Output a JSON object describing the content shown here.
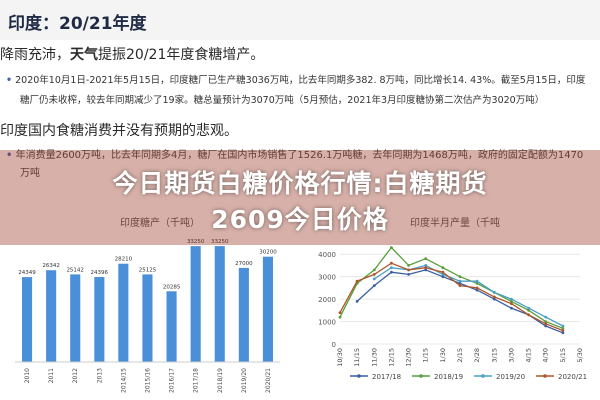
{
  "header": {
    "title": "印度：20/21年度"
  },
  "text": {
    "line1_prefix": "降雨充沛，",
    "line1_bold": "天气",
    "line1_suffix": "提振20/21年度食糖增产。",
    "detail1": "2020年10月1日-2021年5月15日，印度糖厂已生产糖3036万吨，比去年同期多382. 8万吨，同比增长14. 43%。截至5月15日，印度",
    "detail2": "糖厂仍未收榨，较去年同期减少了19家。糖总量预计为3070万吨（5月预估，2021年3月印度糖协第二次估产为3020万吨）",
    "line2": "印度国内食糖消费并没有预期的悲观。",
    "faded1": "年消费量2600万吨，比去年同期多4月，糖厂在国内市场销售了1526.1万吨糖，去年同期为1468万吨，政府的固定配额为1470",
    "faded2": "万吨"
  },
  "overlay": {
    "line1": "今日期货白糖价格行情:白糖期货",
    "line2": "2609今日价格"
  },
  "chart_data": [
    {
      "type": "bar",
      "title": "印度糖产（千吨）",
      "categories": [
        "2010",
        "2011",
        "2012",
        "2013",
        "2014/15",
        "2015/16",
        "2016/17",
        "2017/18",
        "2018/19",
        "2019/20",
        "2020/21"
      ],
      "values": [
        24349,
        26342,
        25142,
        24396,
        28210,
        25125,
        20285,
        33250,
        33250,
        27000,
        30200
      ],
      "color": "#4a90d9"
    },
    {
      "type": "line",
      "title": "印度半月产量（千吨",
      "x": [
        "10/30",
        "11/15",
        "11/30",
        "12/15",
        "12/30",
        "1/15",
        "1/30",
        "2/15",
        "2/28",
        "3/15",
        "3/30",
        "4/15",
        "4/30",
        "5/15",
        "5/30"
      ],
      "yticks": [
        0,
        1000,
        2000,
        3000,
        4000
      ],
      "ylim": [
        0,
        4500
      ],
      "series": [
        {
          "name": "2017/18",
          "color": "#3a5f9e",
          "values": [
            null,
            1900,
            2600,
            3200,
            3100,
            3300,
            3000,
            2700,
            2400,
            2000,
            1600,
            1300,
            800,
            500,
            null
          ]
        },
        {
          "name": "2018/19",
          "color": "#5a9e3c",
          "values": [
            1200,
            2700,
            3300,
            4300,
            3500,
            3800,
            3400,
            3000,
            2700,
            2300,
            1900,
            1500,
            1000,
            700,
            null
          ]
        },
        {
          "name": "2019/20",
          "color": "#4aa0c8",
          "values": [
            null,
            null,
            2900,
            3400,
            3300,
            3500,
            3100,
            2800,
            2800,
            2300,
            2000,
            1600,
            1200,
            800,
            null
          ]
        },
        {
          "name": "2020/21",
          "color": "#b0552a",
          "values": [
            1400,
            2800,
            3100,
            3600,
            3300,
            3400,
            3200,
            2600,
            2500,
            2100,
            1800,
            1300,
            900,
            600,
            null
          ]
        }
      ]
    }
  ]
}
